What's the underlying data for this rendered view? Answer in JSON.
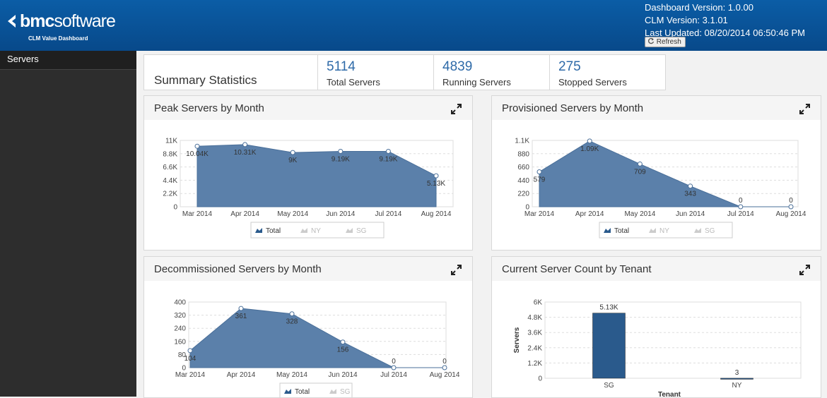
{
  "header": {
    "logo_bold": "bmc",
    "logo_light": "software",
    "subtitle": "CLM Value Dashboard",
    "dashboard_version": "Dashboard Version: 1.0.00",
    "clm_version": "CLM Version: 3.1.01",
    "last_updated": "Last Updated: 08/20/2014 06:50:46 PM",
    "refresh": "Refresh"
  },
  "sidebar": {
    "items": [
      "Servers"
    ]
  },
  "summary": {
    "title": "Summary Statistics",
    "stats": [
      {
        "value": 5114,
        "label": "Total Servers"
      },
      {
        "value": 4839,
        "label": "Running Servers"
      },
      {
        "value": 275,
        "label": "Stopped Servers"
      }
    ]
  },
  "chart_data": [
    {
      "type": "area",
      "title": "Peak Servers by Month",
      "categories": [
        "Mar 2014",
        "Apr 2014",
        "May 2014",
        "Jun 2014",
        "Jul 2014",
        "Aug 2014"
      ],
      "series": [
        {
          "name": "Total",
          "color": "#5b80aa",
          "values": [
            10040,
            10310,
            9000,
            9190,
            9190,
            5130
          ],
          "value_labels": [
            "10.04K",
            "10.31K",
            "9K",
            "9.19K",
            "9.19K",
            "5.13K"
          ]
        }
      ],
      "hidden_series": [
        "NY",
        "SG"
      ],
      "ylim": [
        0,
        11000
      ],
      "yticks": [
        0,
        {
          "value": 2200,
          "label": "2.2K"
        },
        {
          "value": 4400,
          "label": "4.4K"
        },
        {
          "value": 6600,
          "label": "6.6K"
        },
        {
          "value": 8800,
          "label": "8.8K"
        },
        {
          "value": 11000,
          "label": "11K"
        }
      ],
      "grid": true
    },
    {
      "type": "area",
      "title": "Provisioned Servers by Month",
      "categories": [
        "Mar 2014",
        "Apr 2014",
        "May 2014",
        "Jun 2014",
        "Jul 2014",
        "Aug 2014"
      ],
      "series": [
        {
          "name": "Total",
          "color": "#5b80aa",
          "values": [
            579,
            1090,
            709,
            343,
            0,
            0
          ],
          "value_labels": [
            "579",
            "1.09K",
            "709",
            "343",
            "0",
            "0"
          ]
        }
      ],
      "hidden_series": [
        "NY",
        "SG"
      ],
      "ylim": [
        0,
        1100
      ],
      "yticks": [
        0,
        220,
        440,
        660,
        880,
        {
          "value": 1100,
          "label": "1.1K"
        }
      ],
      "grid": true
    },
    {
      "type": "area",
      "title": "Decommissioned Servers by Month",
      "categories": [
        "Mar 2014",
        "Apr 2014",
        "May 2014",
        "Jun 2014",
        "Jul 2014",
        "Aug 2014"
      ],
      "series": [
        {
          "name": "Total",
          "color": "#5b80aa",
          "values": [
            104,
            361,
            328,
            156,
            0,
            0
          ],
          "value_labels": [
            "104",
            "361",
            "328",
            "156",
            "0",
            "0"
          ]
        }
      ],
      "hidden_series": [
        "SG"
      ],
      "ylim": [
        0,
        400
      ],
      "yticks": [
        0,
        80,
        160,
        240,
        320,
        400
      ],
      "grid": true
    },
    {
      "type": "bar",
      "title": "Current Server Count by Tenant",
      "categories": [
        "SG",
        "NY"
      ],
      "values": [
        5130,
        3
      ],
      "value_labels": [
        "5.13K",
        "3"
      ],
      "color": "#2a5a8c",
      "y_label": "Servers",
      "x_label": "Tenant",
      "ylim": [
        0,
        6000
      ],
      "yticks": [
        0,
        {
          "value": 1200,
          "label": "1.2K"
        },
        {
          "value": 2400,
          "label": "2.4K"
        },
        {
          "value": 3600,
          "label": "3.6K"
        },
        {
          "value": 4800,
          "label": "4.8K"
        },
        {
          "value": 6000,
          "label": "6K"
        }
      ],
      "grid": true
    }
  ]
}
